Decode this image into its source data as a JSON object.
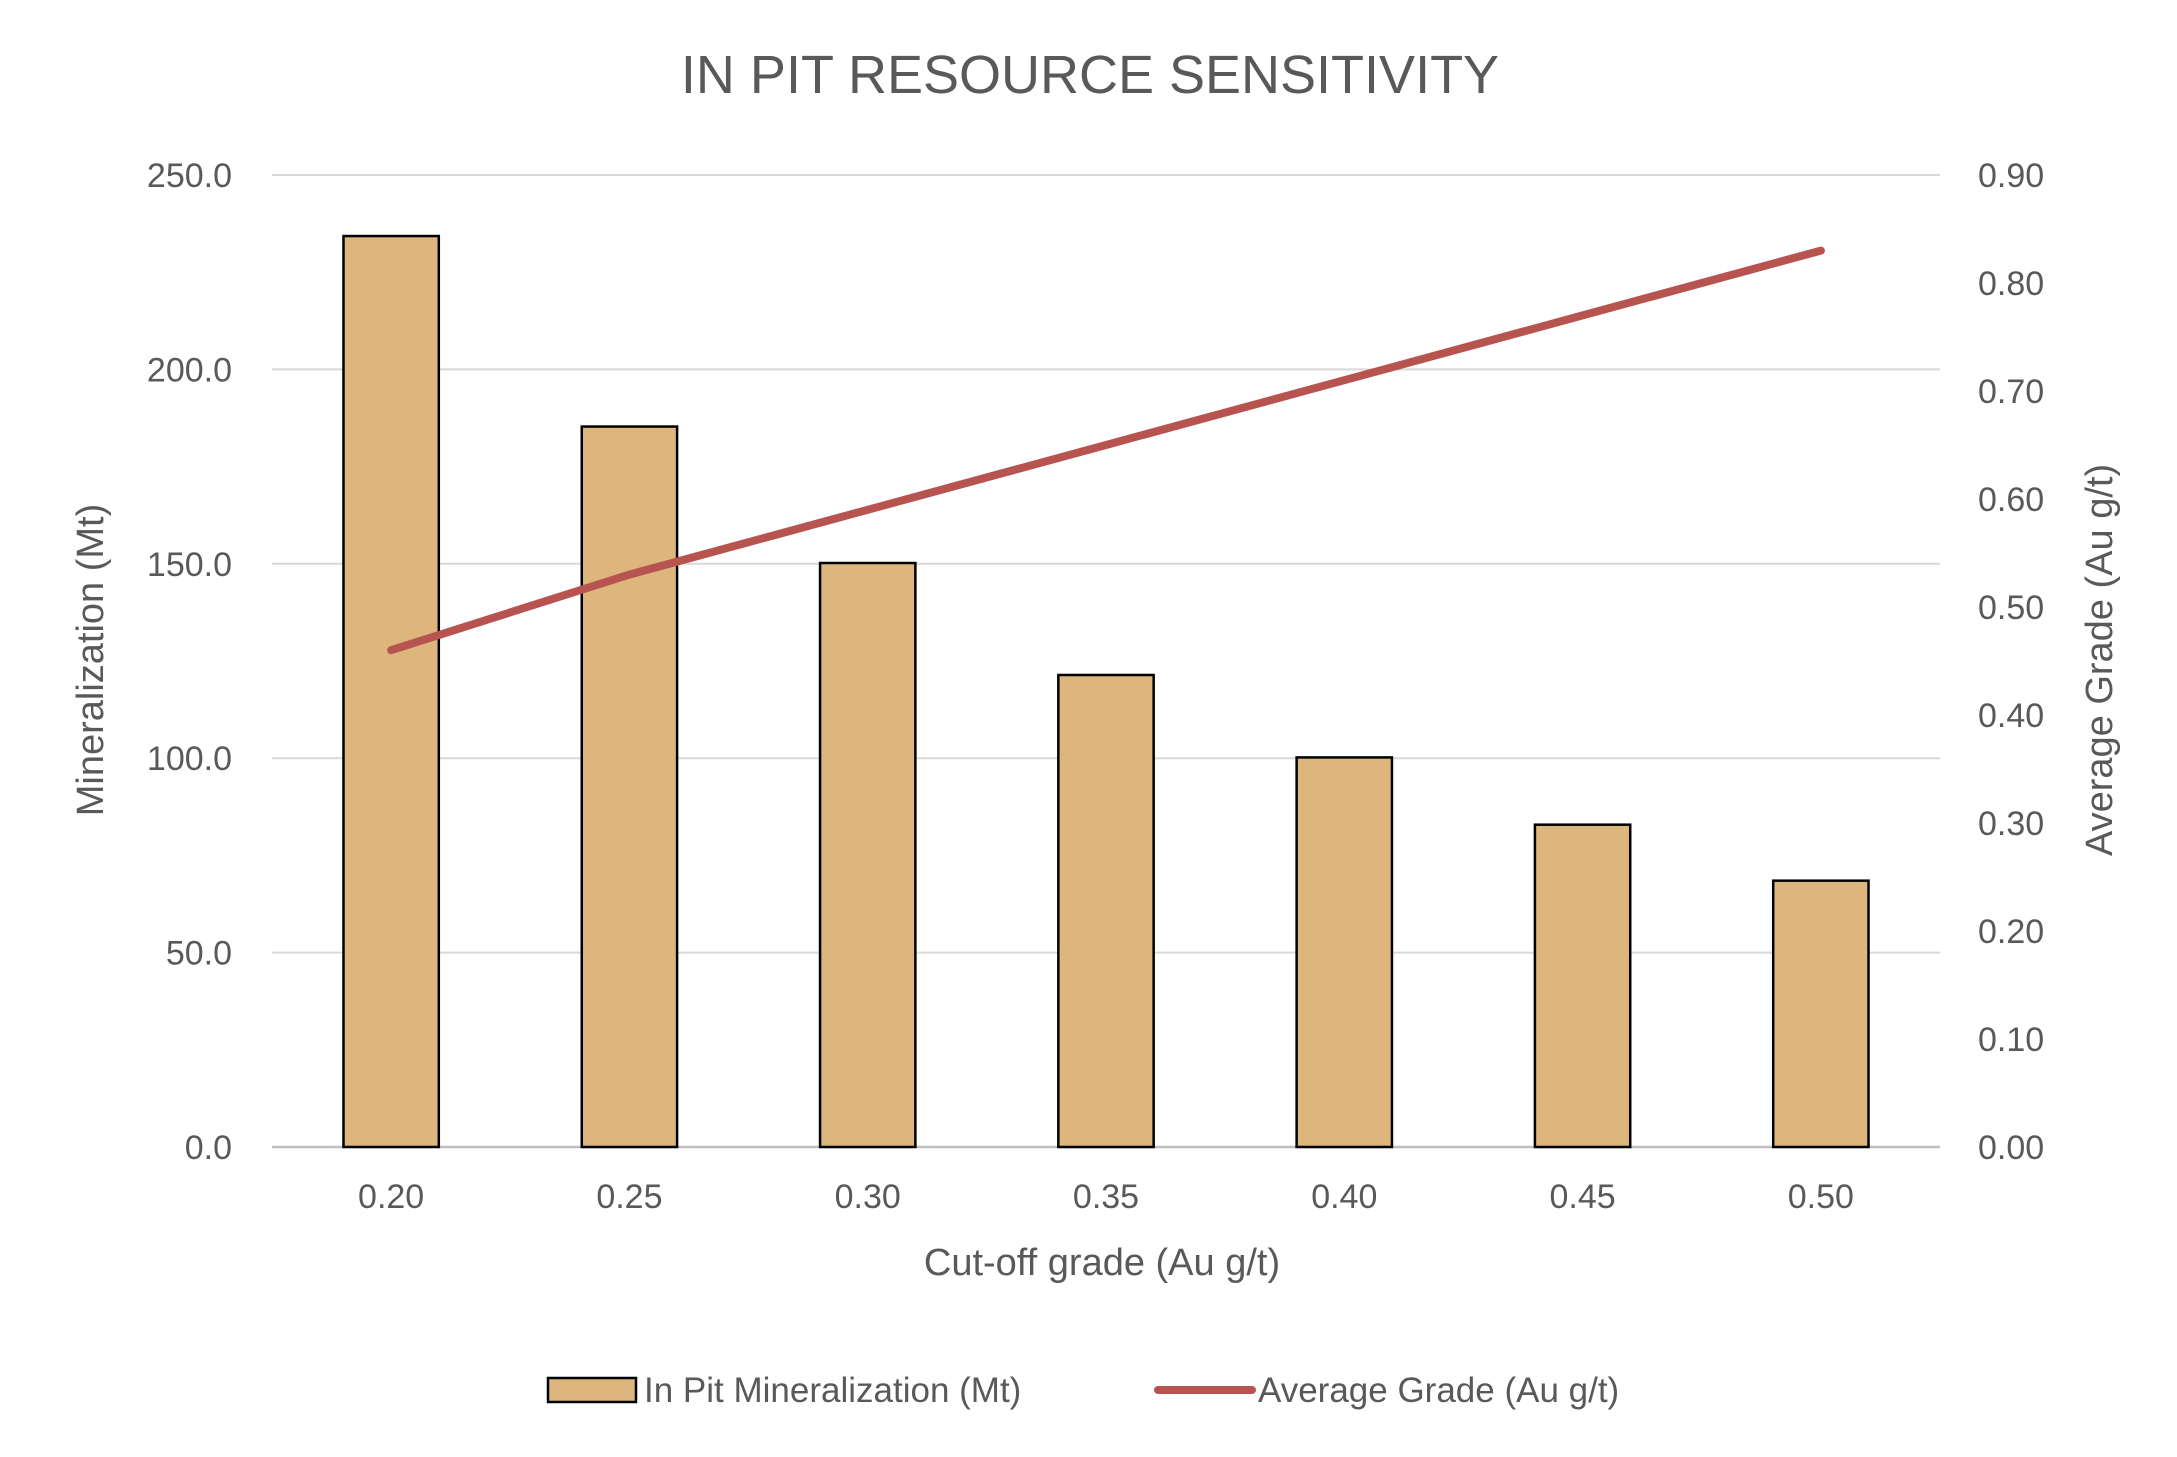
{
  "chart_data": {
    "type": "bar",
    "title": "IN PIT RESOURCE SENSITIVITY",
    "xlabel": "Cut-off grade (Au g/t)",
    "ylabel": "Mineralization (Mt)",
    "y2label": "Average Grade (Au g/t)",
    "categories": [
      "0.20",
      "0.25",
      "0.30",
      "0.35",
      "0.40",
      "0.45",
      "0.50"
    ],
    "ylim": [
      0,
      250
    ],
    "y2lim": [
      0,
      0.9
    ],
    "yticks": [
      "0.0",
      "50.0",
      "100.0",
      "150.0",
      "200.0",
      "250.0"
    ],
    "y2ticks": [
      "0.00",
      "0.10",
      "0.20",
      "0.30",
      "0.40",
      "0.50",
      "0.60",
      "0.70",
      "0.80",
      "0.90"
    ],
    "grid": true,
    "legend_position": "bottom",
    "series": [
      {
        "name": "In Pit Mineralization (Mt)",
        "type": "bar",
        "axis": "left",
        "color": "#DDB67D",
        "values": [
          234.3,
          185.3,
          150.2,
          121.4,
          100.2,
          82.9,
          68.5
        ]
      },
      {
        "name": "Average Grade (Au g/t)",
        "type": "line",
        "axis": "right",
        "color": "#B85450",
        "values": [
          0.46,
          0.53,
          0.59,
          0.65,
          0.71,
          0.77,
          0.83
        ]
      }
    ]
  }
}
